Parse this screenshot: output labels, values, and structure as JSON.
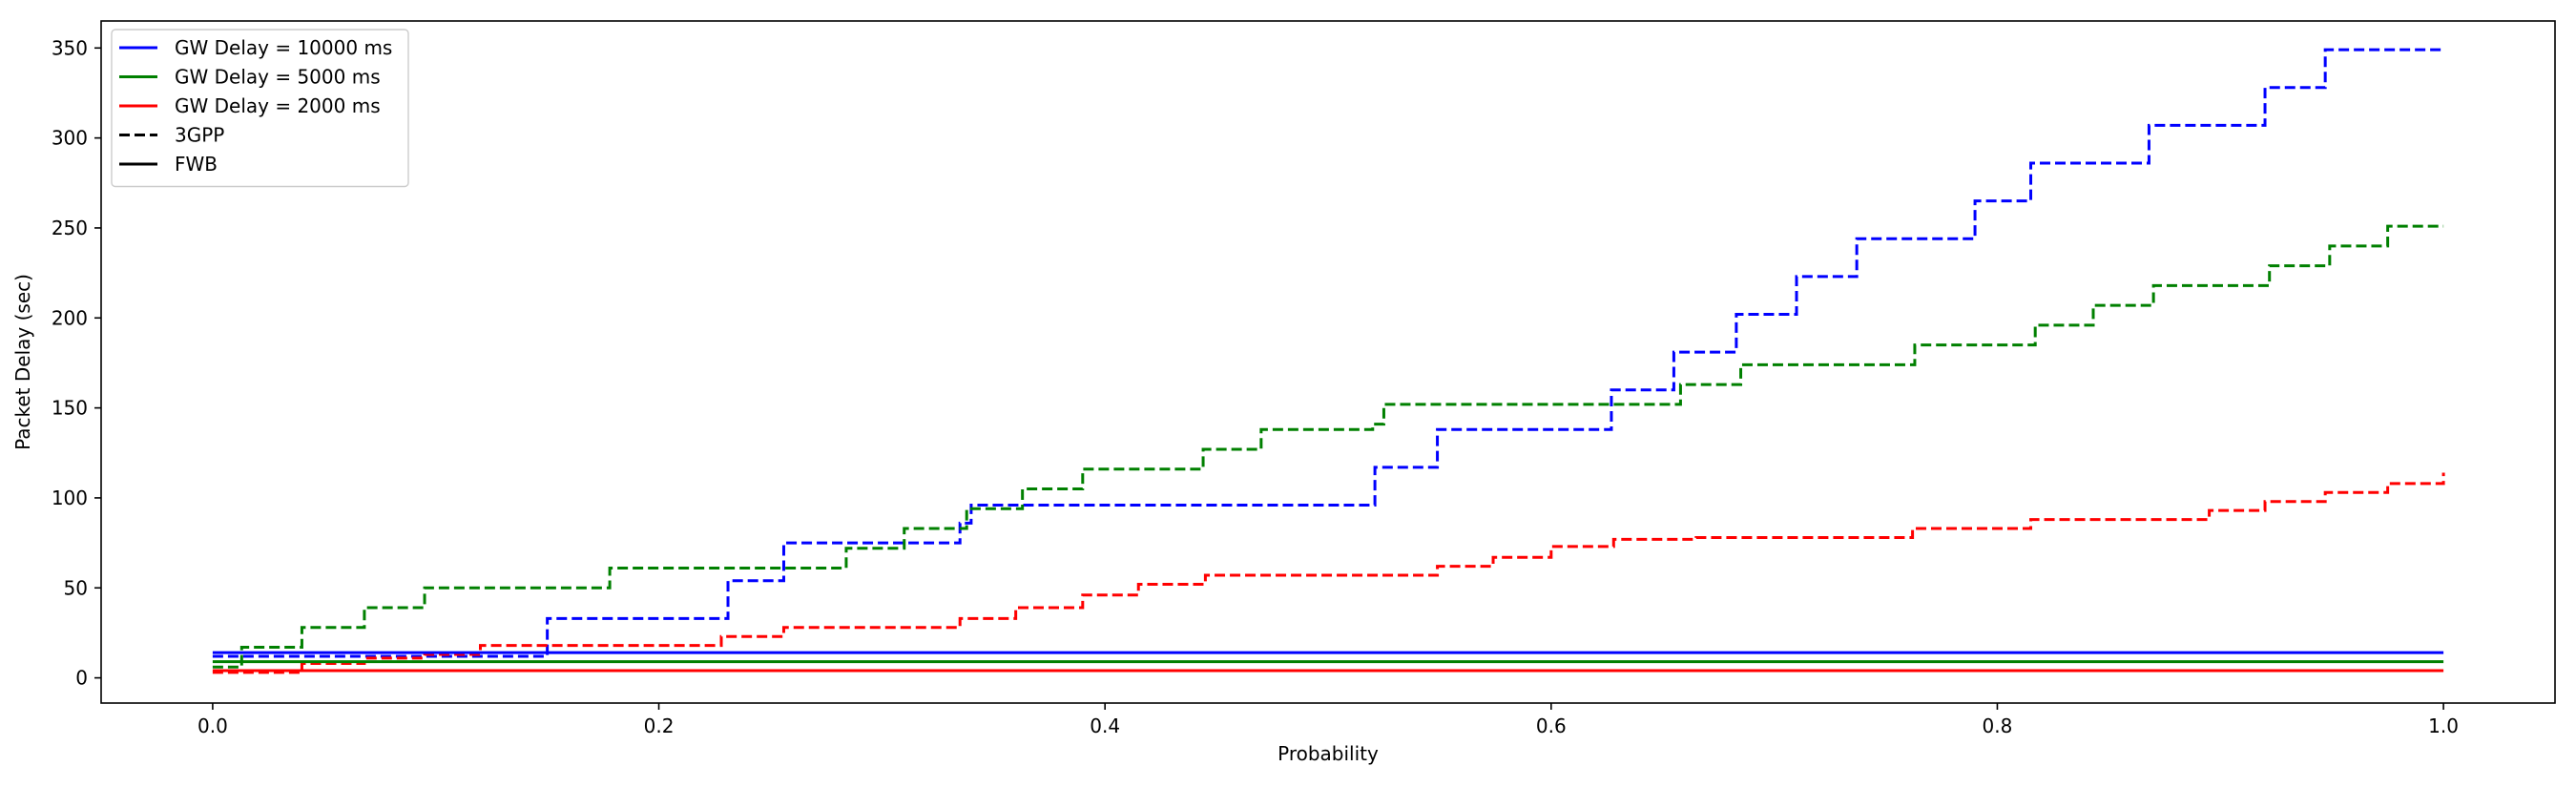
{
  "chart_data": {
    "type": "line",
    "title": "",
    "xlabel": "Probability",
    "ylabel": "Packet Delay (sec)",
    "xlim": [
      -0.05,
      1.05
    ],
    "ylim": [
      -14,
      365
    ],
    "x_ticks": [
      0.0,
      0.2,
      0.4,
      0.6,
      0.8,
      1.0
    ],
    "x_tick_labels": [
      "0.0",
      "0.2",
      "0.4",
      "0.6",
      "0.8",
      "1.0"
    ],
    "y_ticks": [
      0,
      50,
      100,
      150,
      200,
      250,
      300,
      350
    ],
    "y_tick_labels": [
      "0",
      "50",
      "100",
      "150",
      "200",
      "250",
      "300",
      "350"
    ],
    "grid": false,
    "legend_placement": "top-left",
    "legend": [
      {
        "label": "GW Delay = 10000 ms",
        "color": "#0000ff",
        "style": "solid"
      },
      {
        "label": "GW Delay = 5000 ms",
        "color": "#008000",
        "style": "solid"
      },
      {
        "label": "GW Delay = 2000 ms",
        "color": "#ff0000",
        "style": "solid"
      },
      {
        "label": "3GPP",
        "color": "#000000",
        "style": "dashed"
      },
      {
        "label": "FWB",
        "color": "#000000",
        "style": "solid"
      }
    ],
    "series": [
      {
        "color": "#0000ff",
        "style": "dashed",
        "group": "3GPP",
        "gw_delay": "10000 ms",
        "x": [
          0.0,
          0.15,
          0.15,
          0.154,
          0.154,
          0.231,
          0.231,
          0.256,
          0.256,
          0.335,
          0.335,
          0.34,
          0.34,
          0.521,
          0.521,
          0.549,
          0.549,
          0.627,
          0.627,
          0.655,
          0.655,
          0.683,
          0.683,
          0.71,
          0.71,
          0.737,
          0.737,
          0.79,
          0.79,
          0.815,
          0.815,
          0.868,
          0.868,
          0.92,
          0.92,
          0.947,
          0.947,
          1.0
        ],
        "y": [
          12,
          12,
          33,
          33,
          33,
          33,
          54,
          54,
          75,
          75,
          86,
          86,
          96,
          96,
          117,
          117,
          138,
          138,
          160,
          160,
          181,
          181,
          202,
          202,
          223,
          223,
          244,
          244,
          265,
          265,
          286,
          286,
          307,
          307,
          328,
          328,
          349,
          349
        ]
      },
      {
        "color": "#008000",
        "style": "dashed",
        "group": "3GPP",
        "gw_delay": "5000 ms",
        "x": [
          0.0,
          0.013,
          0.013,
          0.04,
          0.04,
          0.068,
          0.068,
          0.095,
          0.095,
          0.178,
          0.178,
          0.284,
          0.284,
          0.31,
          0.31,
          0.338,
          0.338,
          0.363,
          0.363,
          0.39,
          0.39,
          0.444,
          0.444,
          0.47,
          0.47,
          0.52,
          0.52,
          0.525,
          0.525,
          0.658,
          0.658,
          0.685,
          0.685,
          0.763,
          0.763,
          0.817,
          0.817,
          0.843,
          0.843,
          0.87,
          0.87,
          0.922,
          0.922,
          0.949,
          0.949,
          0.975,
          0.975,
          1.0
        ],
        "y": [
          6,
          6,
          17,
          17,
          28,
          28,
          39,
          39,
          50,
          50,
          61,
          61,
          72,
          72,
          83,
          83,
          94,
          94,
          105,
          105,
          116,
          116,
          127,
          127,
          138,
          138,
          141,
          141,
          152,
          152,
          163,
          163,
          174,
          174,
          185,
          185,
          196,
          196,
          207,
          207,
          218,
          218,
          229,
          229,
          240,
          240,
          251,
          251
        ]
      },
      {
        "color": "#ff0000",
        "style": "dashed",
        "group": "3GPP",
        "gw_delay": "2000 ms",
        "x": [
          0.0,
          0.04,
          0.04,
          0.068,
          0.068,
          0.095,
          0.095,
          0.12,
          0.12,
          0.228,
          0.228,
          0.256,
          0.256,
          0.335,
          0.335,
          0.36,
          0.36,
          0.39,
          0.39,
          0.415,
          0.415,
          0.445,
          0.445,
          0.549,
          0.549,
          0.574,
          0.574,
          0.6,
          0.6,
          0.628,
          0.628,
          0.665,
          0.665,
          0.762,
          0.762,
          0.815,
          0.815,
          0.895,
          0.895,
          0.92,
          0.92,
          0.947,
          0.947,
          0.975,
          0.975,
          1.0,
          1.0
        ],
        "y": [
          3,
          3,
          8,
          8,
          11,
          11,
          13,
          13,
          18,
          18,
          23,
          23,
          28,
          28,
          33,
          33,
          39,
          39,
          46,
          46,
          52,
          52,
          57,
          57,
          62,
          62,
          67,
          67,
          73,
          73,
          77,
          77,
          78,
          78,
          83,
          83,
          88,
          88,
          93,
          93,
          98,
          98,
          103,
          103,
          108,
          108,
          114
        ]
      },
      {
        "color": "#0000ff",
        "style": "solid",
        "group": "FWB",
        "gw_delay": "10000 ms",
        "x": [
          0.0,
          1.0
        ],
        "y": [
          14,
          14
        ]
      },
      {
        "color": "#008000",
        "style": "solid",
        "group": "FWB",
        "gw_delay": "5000 ms",
        "x": [
          0.0,
          1.0
        ],
        "y": [
          9,
          9
        ]
      },
      {
        "color": "#ff0000",
        "style": "solid",
        "group": "FWB",
        "gw_delay": "2000 ms",
        "x": [
          0.0,
          1.0
        ],
        "y": [
          4,
          4
        ]
      }
    ]
  }
}
